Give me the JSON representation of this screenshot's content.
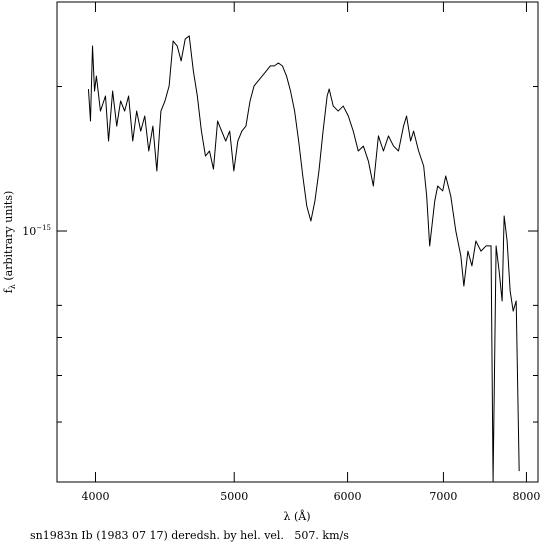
{
  "chart_data": {
    "type": "line",
    "caption": "sn1983n Ib (1983 07 17) deredsh. by hel. vel.   507. km/s",
    "xlabel": "λ (Å)",
    "ylabel": "f",
    "ylabel_sub": "λ",
    "ylabel_rest": " (arbitrary units)",
    "xscale": "log",
    "yscale": "log",
    "xlim": [
      3760,
      8150
    ],
    "ylim": [
      3e-16,
      3e-15
    ],
    "xticks": [
      4000,
      5000,
      6000,
      7000,
      8000
    ],
    "yticks": [
      {
        "value": 1e-15,
        "label": "10",
        "exponent": "−15"
      }
    ],
    "yminorticks": [
      4e-16,
      5e-16,
      6e-16,
      7e-16,
      2e-15
    ],
    "color": "#000000",
    "x": [
      3955,
      3968,
      3981,
      3994,
      4006,
      4032,
      4065,
      4085,
      4112,
      4139,
      4165,
      4192,
      4219,
      4247,
      4274,
      4302,
      4330,
      4358,
      4387,
      4415,
      4444,
      4473,
      4503,
      4532,
      4562,
      4591,
      4621,
      4651,
      4682,
      4712,
      4743,
      4774,
      4805,
      4836,
      4868,
      4900,
      4932,
      4964,
      4997,
      5029,
      5062,
      5095,
      5129,
      5162,
      5196,
      5230,
      5264,
      5299,
      5333,
      5368,
      5403,
      5439,
      5474,
      5510,
      5546,
      5583,
      5619,
      5656,
      5693,
      5730,
      5768,
      5806,
      5825,
      5863,
      5910,
      5958,
      6007,
      6055,
      6104,
      6154,
      6204,
      6254,
      6305,
      6356,
      6408,
      6460,
      6512,
      6565,
      6597,
      6640,
      6672,
      6726,
      6781,
      6814,
      6847,
      6903,
      6936,
      6992,
      7026,
      7083,
      7141,
      7199,
      7234,
      7281,
      7328,
      7375,
      7436,
      7496,
      7557,
      7582,
      7619,
      7656,
      7693,
      7718,
      7755,
      7793,
      7831,
      7869,
      7907
    ],
    "values": [
      1.976e-15,
      1.695e-15,
      2.429e-15,
      1.957e-15,
      2.103e-15,
      1.778e-15,
      1.911e-15,
      1.54e-15,
      1.957e-15,
      1.654e-15,
      1.866e-15,
      1.778e-15,
      1.911e-15,
      1.54e-15,
      1.778e-15,
      1.615e-15,
      1.736e-15,
      1.468e-15,
      1.654e-15,
      1.334e-15,
      1.778e-15,
      1.866e-15,
      2.005e-15,
      2.488e-15,
      2.429e-15,
      2.261e-15,
      2.512e-15,
      2.549e-15,
      2.154e-15,
      1.911e-15,
      1.615e-15,
      1.433e-15,
      1.468e-15,
      1.346e-15,
      1.695e-15,
      1.615e-15,
      1.54e-15,
      1.615e-15,
      1.334e-15,
      1.54e-15,
      1.615e-15,
      1.654e-15,
      1.866e-15,
      2.005e-15,
      2.054e-15,
      2.103e-15,
      2.154e-15,
      2.208e-15,
      2.208e-15,
      2.239e-15,
      2.208e-15,
      2.103e-15,
      1.957e-15,
      1.778e-15,
      1.54e-15,
      1.302e-15,
      1.127e-15,
      1.049e-15,
      1.155e-15,
      1.334e-15,
      1.615e-15,
      1.911e-15,
      1.976e-15,
      1.821e-15,
      1.778e-15,
      1.821e-15,
      1.736e-15,
      1.615e-15,
      1.468e-15,
      1.503e-15,
      1.399e-15,
      1.241e-15,
      1.578e-15,
      1.468e-15,
      1.578e-15,
      1.503e-15,
      1.468e-15,
      1.654e-15,
      1.736e-15,
      1.54e-15,
      1.615e-15,
      1.468e-15,
      1.366e-15,
      1.183e-15,
      9.31e-16,
      1.155e-15,
      1.241e-15,
      1.212e-15,
      1.302e-15,
      1.183e-15,
      1e-15,
      8.87e-16,
      7.68e-16,
      9.08e-16,
      8.46e-16,
      9.53e-16,
      9.08e-16,
      9.31e-16,
      9.31e-16,
      3.01e-16,
      9.31e-16,
      8.25e-16,
      7.15e-16,
      1.075e-15,
      9.53e-16,
      7.5e-16,
      6.81e-16,
      7.15e-16,
      3.16e-16
    ]
  }
}
